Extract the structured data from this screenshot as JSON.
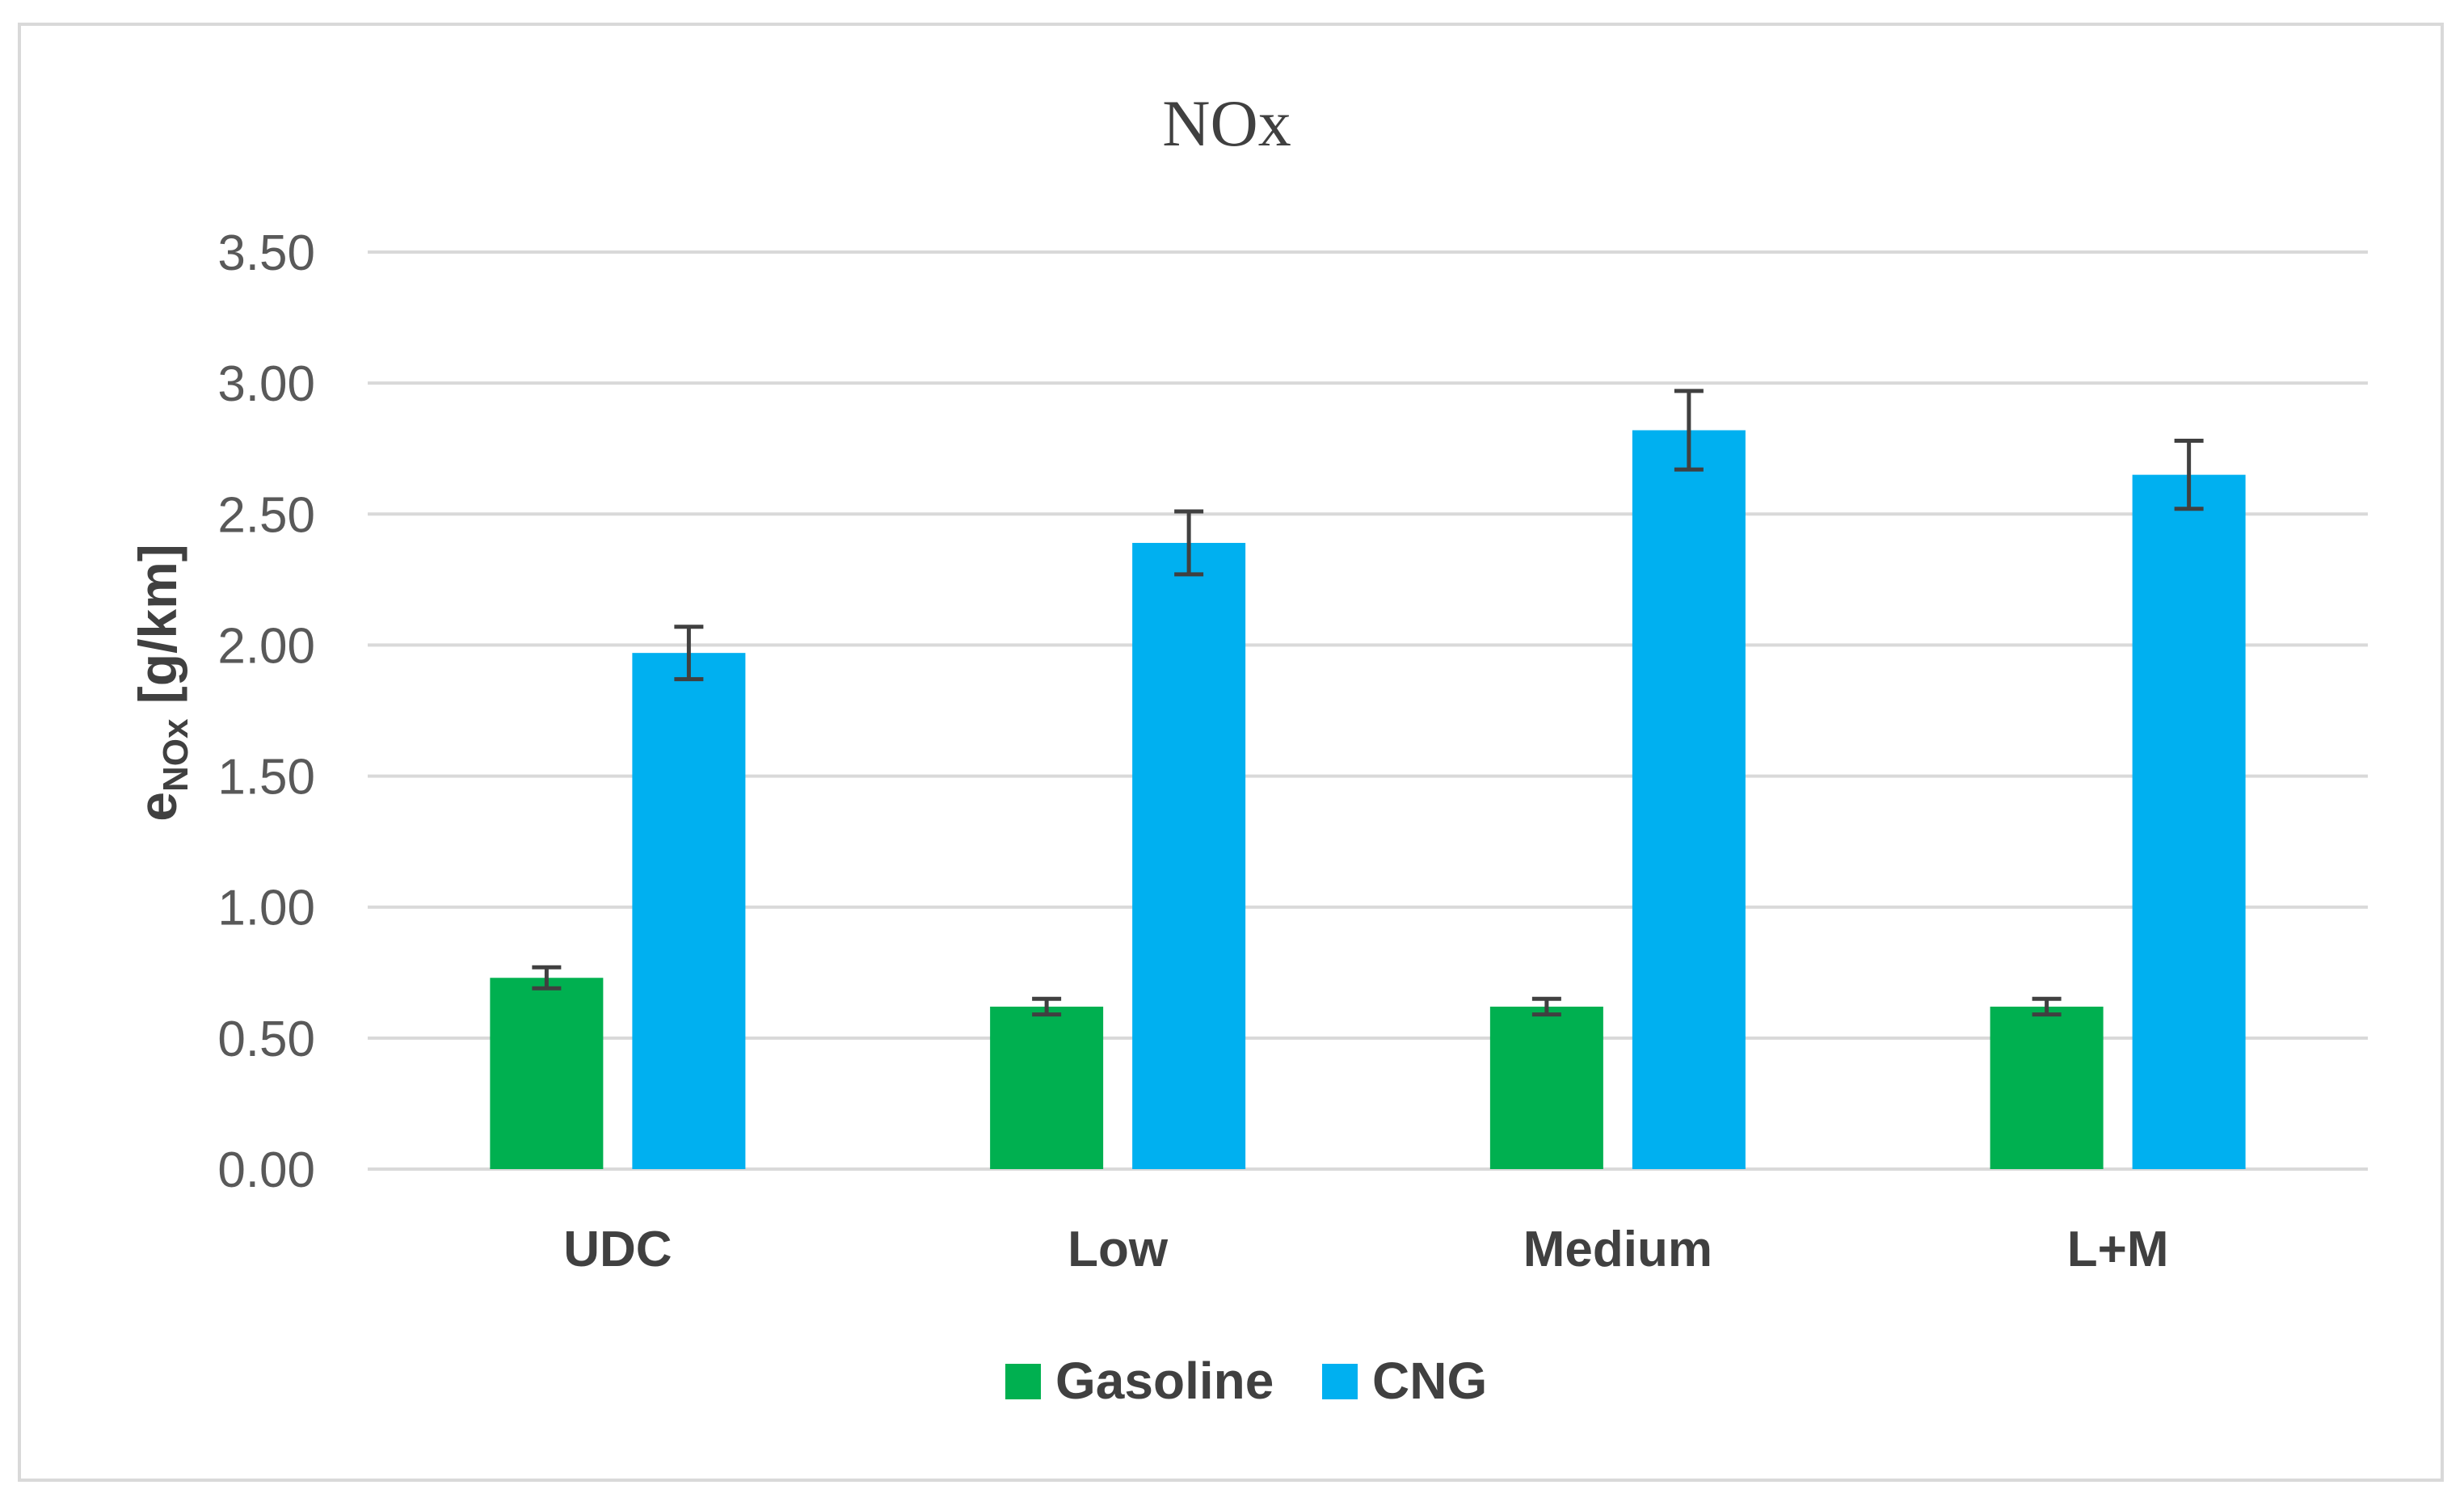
{
  "chart_data": {
    "type": "bar",
    "title": "NOx",
    "ylabel_main": "e",
    "ylabel_sub": "NOx",
    "ylabel_unit": " [g/km]",
    "categories": [
      "UDC",
      "Low",
      "Medium",
      "L+M"
    ],
    "series": [
      {
        "name": "Gasoline",
        "color": "#00b050",
        "values": [
          0.73,
          0.62,
          0.62,
          0.62
        ],
        "errors": [
          0.04,
          0.03,
          0.03,
          0.03
        ]
      },
      {
        "name": "CNG",
        "color": "#00b0f0",
        "values": [
          1.97,
          2.39,
          2.82,
          2.65
        ],
        "errors": [
          0.1,
          0.12,
          0.15,
          0.13
        ]
      }
    ],
    "ylim": [
      0,
      3.5
    ],
    "yticks": [
      "0.00",
      "0.50",
      "1.00",
      "1.50",
      "2.00",
      "2.50",
      "3.00",
      "3.50"
    ],
    "grid": true,
    "legend": "bottom"
  }
}
